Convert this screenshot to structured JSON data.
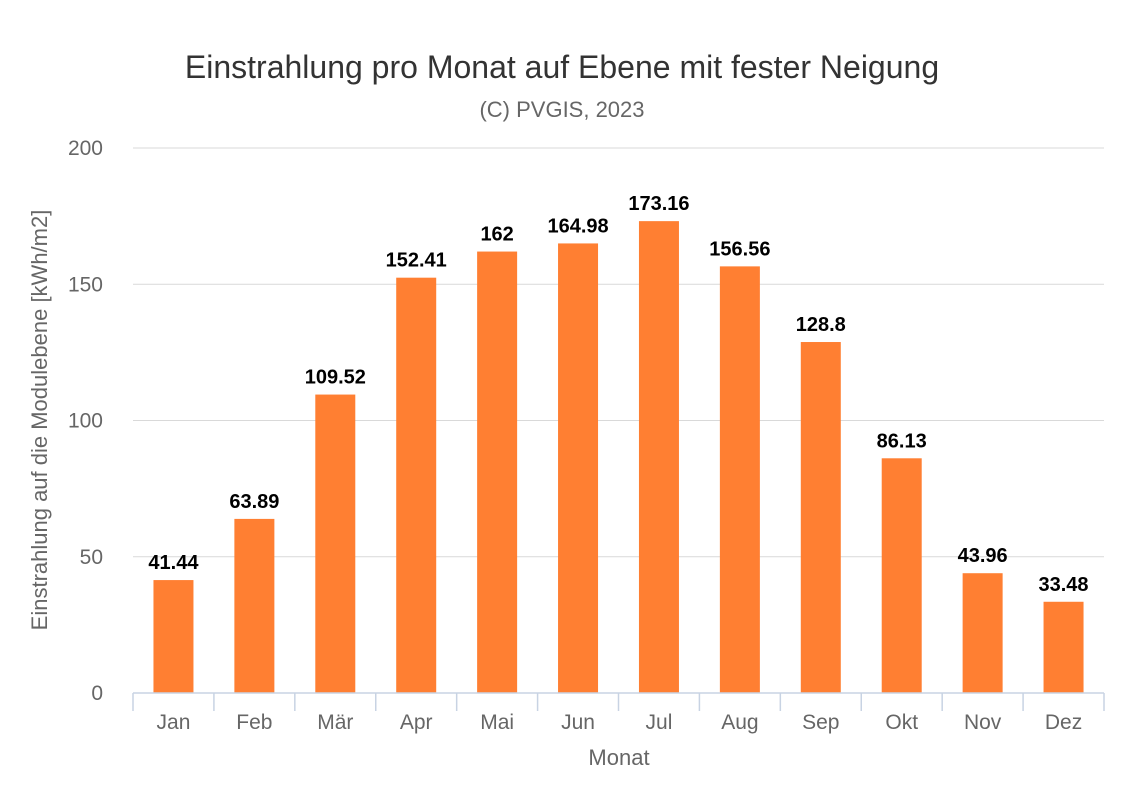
{
  "chart_data": {
    "type": "bar",
    "title": "Einstrahlung pro Monat auf Ebene mit fester Neigung",
    "subtitle": "(C) PVGIS, 2023",
    "xlabel": "Monat",
    "ylabel": "Einstrahlung auf die Modulebene [kWh/m2]",
    "categories": [
      "Jan",
      "Feb",
      "Mär",
      "Apr",
      "Mai",
      "Jun",
      "Jul",
      "Aug",
      "Sep",
      "Okt",
      "Nov",
      "Dez"
    ],
    "values": [
      41.44,
      63.89,
      109.52,
      152.41,
      162,
      164.98,
      173.16,
      156.56,
      128.8,
      86.13,
      43.96,
      33.48
    ],
    "data_labels": [
      "41.44",
      "63.89",
      "109.52",
      "152.41",
      "162",
      "164.98",
      "173.16",
      "156.56",
      "128.8",
      "86.13",
      "43.96",
      "33.48"
    ],
    "ylim": [
      0,
      200
    ],
    "yticks": [
      0,
      50,
      100,
      150,
      200
    ],
    "grid": true,
    "color": "#ff7f32"
  }
}
